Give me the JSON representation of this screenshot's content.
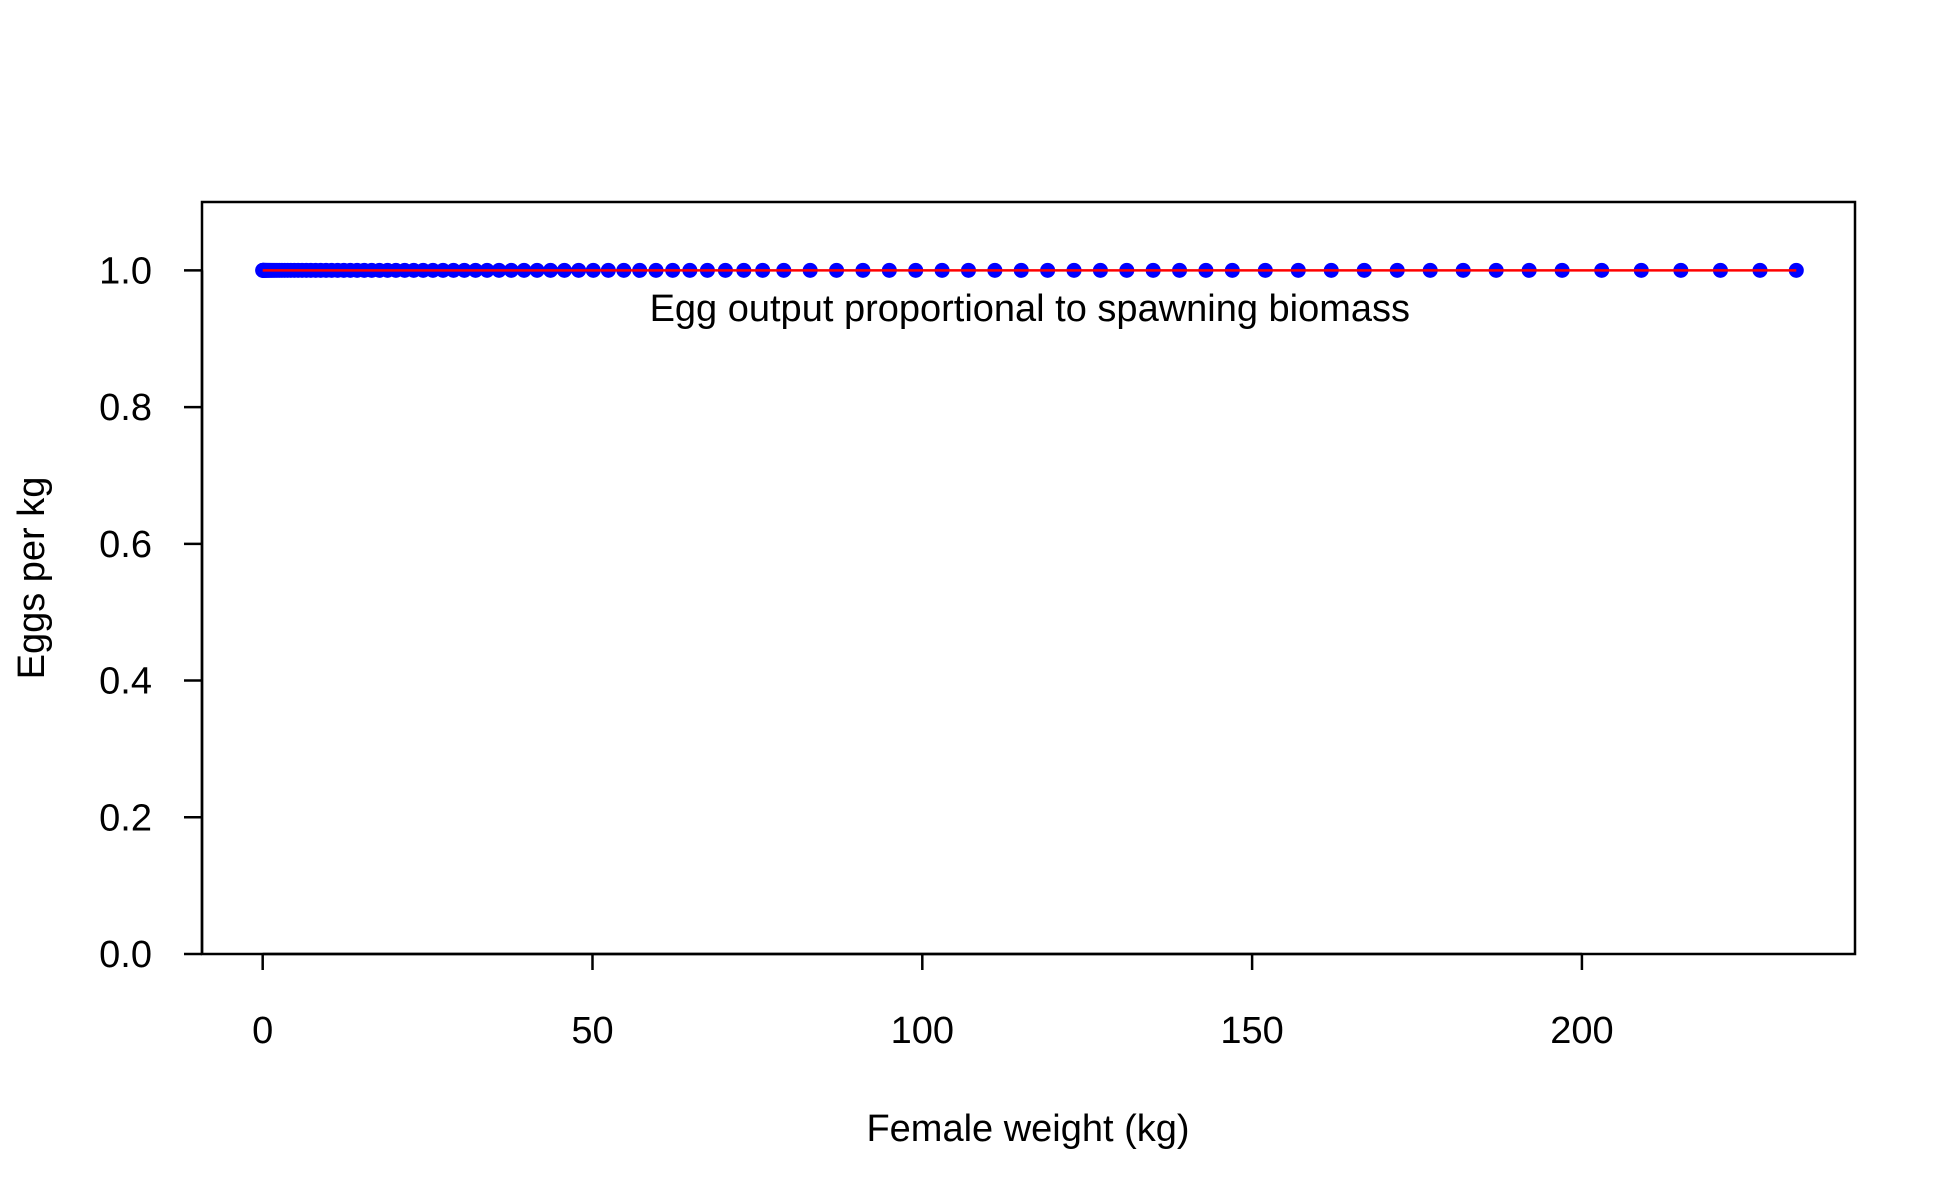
{
  "chart_data": {
    "type": "scatter",
    "title": "",
    "xlabel": "Female weight (kg)",
    "ylabel": "Eggs per kg",
    "xlim": [
      -9.2,
      241.4
    ],
    "ylim": [
      0,
      1.1
    ],
    "xticks": [
      0,
      50,
      100,
      150,
      200
    ],
    "xtick_labels": [
      "0",
      "50",
      "100",
      "150",
      "200"
    ],
    "yticks": [
      0,
      0.2,
      0.4,
      0.6,
      0.8,
      1.0
    ],
    "ytick_labels": [
      "0.0",
      "0.2",
      "0.4",
      "0.6",
      "0.8",
      "1.0"
    ],
    "grid": false,
    "annotation": {
      "text": "Egg output proportional to spawning biomass",
      "x": 116.3,
      "y": 0.945
    },
    "colors": {
      "points": "#0000ff",
      "line": "#ff0000",
      "axes": "#000000"
    },
    "series": [
      {
        "type": "scatter",
        "x": [
          0.0,
          0.02,
          0.05,
          0.09,
          0.14,
          0.21,
          0.3,
          0.41,
          0.54,
          0.69,
          0.87,
          1.07,
          1.3,
          1.56,
          1.85,
          2.17,
          2.52,
          2.91,
          3.33,
          3.78,
          4.27,
          4.8,
          5.37,
          5.97,
          6.62,
          7.3,
          8.03,
          8.8,
          9.61,
          10.46,
          11.36,
          12.3,
          13.29,
          14.32,
          15.4,
          16.53,
          17.71,
          18.93,
          20.2,
          21.53,
          22.9,
          24.33,
          25.81,
          27.34,
          28.93,
          30.57,
          32.27,
          34.02,
          35.83,
          37.69,
          39.62,
          41.6,
          43.64,
          45.74,
          47.9,
          50.12,
          52.4,
          54.75,
          57.16,
          59.63,
          62.16,
          64.76,
          67.42,
          70.15,
          72.94,
          75.8,
          79.0,
          83.0,
          87.0,
          91.0,
          95.0,
          99.0,
          103.0,
          107.0,
          111.0,
          115.0,
          119.0,
          123.0,
          127.0,
          131.0,
          135.0,
          139.0,
          143.0,
          147.0,
          152.0,
          157.0,
          162.0,
          167.0,
          172.0,
          177.0,
          182.0,
          187.0,
          192.0,
          197.0,
          203.0,
          209.0,
          215.0,
          221.0,
          227.0,
          232.5
        ],
        "y": [
          1,
          1,
          1,
          1,
          1,
          1,
          1,
          1,
          1,
          1,
          1,
          1,
          1,
          1,
          1,
          1,
          1,
          1,
          1,
          1,
          1,
          1,
          1,
          1,
          1,
          1,
          1,
          1,
          1,
          1,
          1,
          1,
          1,
          1,
          1,
          1,
          1,
          1,
          1,
          1,
          1,
          1,
          1,
          1,
          1,
          1,
          1,
          1,
          1,
          1,
          1,
          1,
          1,
          1,
          1,
          1,
          1,
          1,
          1,
          1,
          1,
          1,
          1,
          1,
          1,
          1,
          1,
          1,
          1,
          1,
          1,
          1,
          1,
          1,
          1,
          1,
          1,
          1,
          1,
          1,
          1,
          1,
          1,
          1,
          1,
          1,
          1,
          1,
          1,
          1,
          1,
          1,
          1,
          1,
          1,
          1,
          1,
          1,
          1,
          1
        ]
      },
      {
        "type": "line",
        "x": [
          0.0,
          232.5
        ],
        "y": [
          1,
          1
        ]
      }
    ]
  }
}
